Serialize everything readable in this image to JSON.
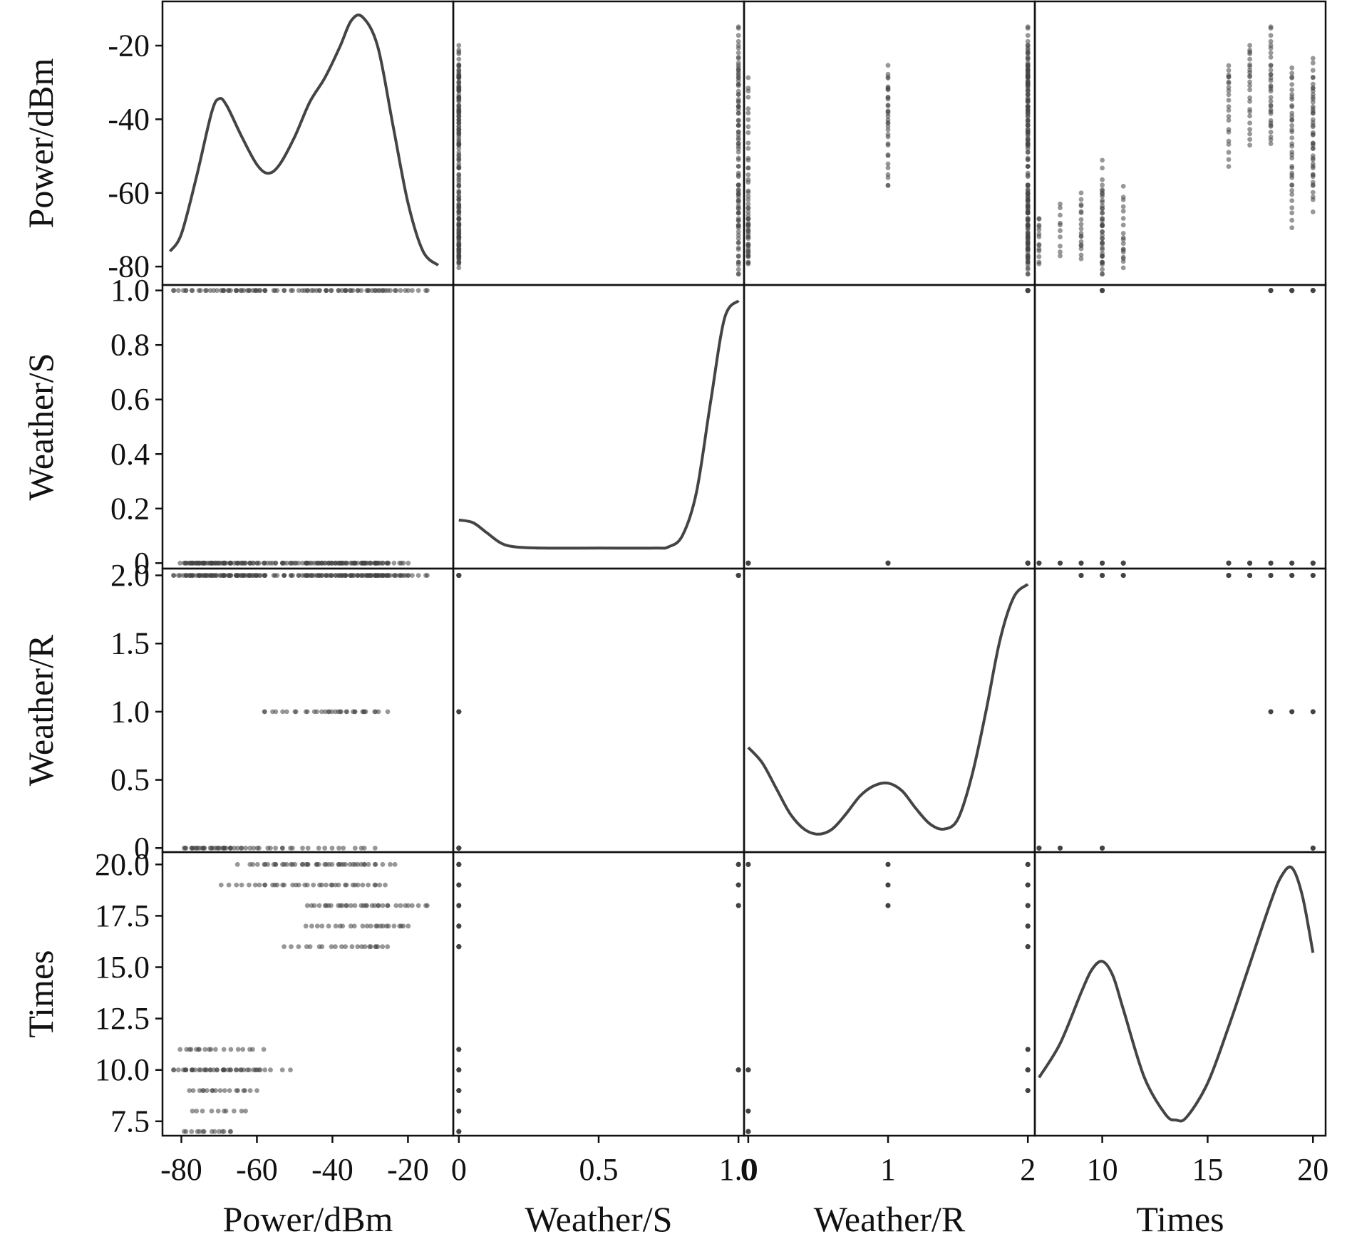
{
  "variables": [
    "Power/dBm",
    "Weather/S",
    "Weather/R",
    "Times"
  ],
  "colors": {
    "ink": "#444444",
    "frame": "#111111",
    "background": "#ffffff"
  },
  "chart_data": {
    "type": "scatter",
    "kind": "scatter-matrix",
    "diagonal": "kde",
    "grid": false,
    "variables": [
      {
        "name": "Power/dBm",
        "range": [
          -85,
          -8
        ],
        "y_ticks": [
          {
            "v": -20,
            "label": "-20"
          },
          {
            "v": -40,
            "label": "-40"
          },
          {
            "v": -60,
            "label": "-60"
          },
          {
            "v": -80,
            "label": "-80"
          }
        ],
        "x_ticks": [
          {
            "v": -80,
            "label": "-80"
          },
          {
            "v": -60,
            "label": "-60"
          },
          {
            "v": -40,
            "label": "-40"
          },
          {
            "v": -20,
            "label": "-20"
          }
        ]
      },
      {
        "name": "Weather/S",
        "range": [
          -0.02,
          1.02
        ],
        "y_ticks": [
          {
            "v": 1.0,
            "label": "1.0"
          },
          {
            "v": 0.8,
            "label": "0.8"
          },
          {
            "v": 0.6,
            "label": "0.6"
          },
          {
            "v": 0.4,
            "label": "0.4"
          },
          {
            "v": 0.2,
            "label": "0.2"
          },
          {
            "v": 0,
            "label": "0"
          }
        ],
        "x_ticks": [
          {
            "v": 0,
            "label": "0"
          },
          {
            "v": 0.5,
            "label": "0.5"
          },
          {
            "v": 1.0,
            "label": "1.0"
          }
        ]
      },
      {
        "name": "Weather/R",
        "range": [
          -0.03,
          2.05
        ],
        "y_ticks": [
          {
            "v": 2.0,
            "label": "2.0"
          },
          {
            "v": 1.5,
            "label": "1.5"
          },
          {
            "v": 1.0,
            "label": "1.0"
          },
          {
            "v": 0.5,
            "label": "0.5"
          },
          {
            "v": 0,
            "label": "0"
          }
        ],
        "x_ticks": [
          {
            "v": 0,
            "label": "0"
          },
          {
            "v": 1,
            "label": "1"
          },
          {
            "v": 2,
            "label": "2"
          }
        ]
      },
      {
        "name": "Times",
        "range": [
          6.8,
          20.6
        ],
        "y_ticks": [
          {
            "v": 20.0,
            "label": "20.0"
          },
          {
            "v": 17.5,
            "label": "17.5"
          },
          {
            "v": 15.0,
            "label": "15.0"
          },
          {
            "v": 12.5,
            "label": "12.5"
          },
          {
            "v": 10.0,
            "label": "10.0"
          },
          {
            "v": 7.5,
            "label": "7.5"
          }
        ],
        "x_ticks": [
          {
            "v": 10,
            "label": "10"
          },
          {
            "v": 15,
            "label": "15"
          },
          {
            "v": 20,
            "label": "20"
          }
        ]
      }
    ],
    "groups": [
      {
        "times": 7,
        "S": 0,
        "R": 0,
        "power": [
          -80,
          -73,
          -66
        ],
        "count": 14
      },
      {
        "times": 8,
        "S": 0,
        "R": 0,
        "power": [
          -78,
          -70,
          -62
        ],
        "count": 10
      },
      {
        "times": 9,
        "S": 0,
        "R": 2,
        "power": [
          -78,
          -70,
          -60
        ],
        "count": 18
      },
      {
        "times": 10,
        "S": 1,
        "R": 2,
        "power": [
          -83,
          -70,
          -58
        ],
        "count": 30
      },
      {
        "times": 10,
        "S": 0,
        "R": 0,
        "power": [
          -80,
          -68,
          -50
        ],
        "count": 14
      },
      {
        "times": 11,
        "S": 0,
        "R": 2,
        "power": [
          -80,
          -73,
          -58
        ],
        "count": 18
      },
      {
        "times": 16,
        "S": 0,
        "R": 2,
        "power": [
          -53,
          -35,
          -25
        ],
        "count": 22
      },
      {
        "times": 17,
        "S": 0,
        "R": 2,
        "power": [
          -48,
          -30,
          -20
        ],
        "count": 24
      },
      {
        "times": 18,
        "S": 1,
        "R": 2,
        "power": [
          -48,
          -28,
          -14
        ],
        "count": 22
      },
      {
        "times": 18,
        "S": 0,
        "R": 1,
        "power": [
          -45,
          -35,
          -25
        ],
        "count": 12
      },
      {
        "times": 19,
        "S": 1,
        "R": 2,
        "power": [
          -70,
          -48,
          -25
        ],
        "count": 26
      },
      {
        "times": 19,
        "S": 0,
        "R": 1,
        "power": [
          -60,
          -42,
          -28
        ],
        "count": 12
      },
      {
        "times": 20,
        "S": 0,
        "R": 0,
        "power": [
          -66,
          -45,
          -28
        ],
        "count": 18
      },
      {
        "times": 20,
        "S": 1,
        "R": 2,
        "power": [
          -62,
          -40,
          -22
        ],
        "count": 18
      },
      {
        "times": 20,
        "S": 0,
        "R": 1,
        "power": [
          -60,
          -45,
          -30
        ],
        "count": 10
      }
    ],
    "kde": {
      "Power/dBm": {
        "x": [
          -83,
          -80,
          -76,
          -72,
          -70,
          -68,
          -64,
          -60,
          -57,
          -54,
          -50,
          -46,
          -42,
          -38,
          -35,
          -32,
          -28,
          -24,
          -20,
          -16,
          -12
        ],
        "y": [
          0.12,
          0.22,
          0.55,
          0.92,
          1.0,
          0.96,
          0.78,
          0.62,
          0.57,
          0.62,
          0.78,
          0.98,
          1.12,
          1.3,
          1.45,
          1.47,
          1.3,
          0.85,
          0.4,
          0.12,
          0.04
        ]
      },
      "Weather/S": {
        "x": [
          0,
          0.05,
          0.1,
          0.15,
          0.2,
          0.3,
          0.5,
          0.7,
          0.75,
          0.8,
          0.85,
          0.9,
          0.95,
          1.0
        ],
        "y": [
          0.14,
          0.13,
          0.09,
          0.05,
          0.035,
          0.03,
          0.03,
          0.03,
          0.035,
          0.08,
          0.25,
          0.6,
          0.93,
          1.0
        ]
      },
      "Weather/R": {
        "x": [
          0,
          0.1,
          0.2,
          0.3,
          0.4,
          0.5,
          0.6,
          0.7,
          0.8,
          0.9,
          1.0,
          1.1,
          1.2,
          1.3,
          1.4,
          1.5,
          1.6,
          1.7,
          1.8,
          1.9,
          2.0
        ],
        "y": [
          0.36,
          0.3,
          0.2,
          0.1,
          0.04,
          0.02,
          0.04,
          0.1,
          0.17,
          0.21,
          0.22,
          0.19,
          0.12,
          0.06,
          0.04,
          0.08,
          0.25,
          0.5,
          0.78,
          0.95,
          1.0
        ]
      },
      "Times": {
        "x": [
          7,
          8,
          9,
          9.5,
          10,
          10.5,
          11,
          12,
          13,
          13.5,
          14,
          15,
          16,
          17,
          18,
          18.5,
          19,
          19.5,
          20
        ],
        "y": [
          0.16,
          0.28,
          0.46,
          0.54,
          0.57,
          0.52,
          0.4,
          0.16,
          0.03,
          0.01,
          0.02,
          0.14,
          0.34,
          0.56,
          0.78,
          0.87,
          0.9,
          0.8,
          0.6
        ]
      }
    }
  }
}
